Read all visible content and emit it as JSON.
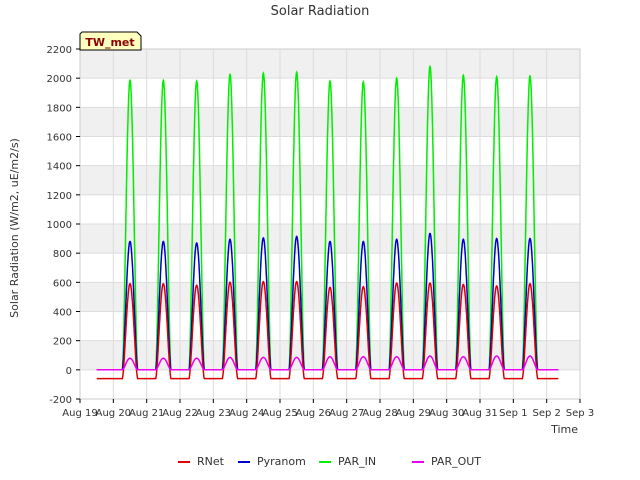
{
  "chart_data": {
    "type": "line",
    "title": "Solar Radiation",
    "xlabel": "Time",
    "ylabel": "Solar Radiation (W/m2, uE/m2/s)",
    "site_label": "TW_met",
    "ylim": [
      -200,
      2200
    ],
    "yticks": [
      -200,
      0,
      200,
      400,
      600,
      800,
      1000,
      1200,
      1400,
      1600,
      1800,
      2000,
      2200
    ],
    "xlim": [
      0,
      15
    ],
    "xticks": [
      {
        "x": 0,
        "label": "Aug 19"
      },
      {
        "x": 1,
        "label": "Aug 20"
      },
      {
        "x": 2,
        "label": "Aug 21"
      },
      {
        "x": 3,
        "label": "Aug 22"
      },
      {
        "x": 4,
        "label": "Aug 23"
      },
      {
        "x": 5,
        "label": "Aug 24"
      },
      {
        "x": 6,
        "label": "Aug 25"
      },
      {
        "x": 7,
        "label": "Aug 26"
      },
      {
        "x": 8,
        "label": "Aug 27"
      },
      {
        "x": 9,
        "label": "Aug 28"
      },
      {
        "x": 10,
        "label": "Aug 29"
      },
      {
        "x": 11,
        "label": "Aug 30"
      },
      {
        "x": 12,
        "label": "Aug 31"
      },
      {
        "x": 13,
        "label": "Sep 1"
      },
      {
        "x": 14,
        "label": "Sep 2"
      },
      {
        "x": 15,
        "label": "Sep 3"
      }
    ],
    "grid": true,
    "legend_position": "bottom",
    "data_start_day": 0.5,
    "data_end_day": 14.35,
    "series": [
      {
        "name": "RNet",
        "color": "#dd0000",
        "night": -60,
        "daily_peaks": [
          580,
          590,
          590,
          580,
          600,
          605,
          605,
          565,
          570,
          595,
          595,
          585,
          575,
          590
        ]
      },
      {
        "name": "Pyranom",
        "color": "#0000cc",
        "night": 0,
        "daily_peaks": [
          865,
          880,
          880,
          870,
          895,
          905,
          915,
          880,
          880,
          895,
          935,
          895,
          900,
          900
        ]
      },
      {
        "name": "PAR_IN",
        "color": "#00ee00",
        "night": 0,
        "daily_peaks": [
          1960,
          1985,
          1985,
          1980,
          2025,
          2035,
          2040,
          1980,
          1975,
          2000,
          2080,
          2020,
          2010,
          2015
        ]
      },
      {
        "name": "PAR_OUT",
        "color": "#ee00ee",
        "night": 0,
        "daily_peaks": [
          80,
          80,
          80,
          80,
          85,
          85,
          85,
          90,
          90,
          90,
          95,
          90,
          95,
          95
        ]
      }
    ]
  }
}
